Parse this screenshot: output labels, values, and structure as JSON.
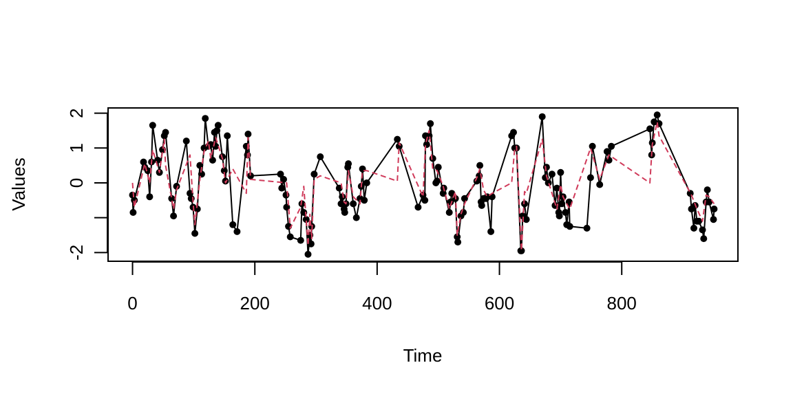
{
  "chart_data": {
    "type": "line",
    "title": "",
    "xlabel": "Time",
    "ylabel": "Values",
    "xlim": [
      -40,
      990
    ],
    "ylim": [
      -2.25,
      2.15
    ],
    "grid": false,
    "x_ticks": [
      {
        "value": 0,
        "label": "0"
      },
      {
        "value": 200,
        "label": "200"
      },
      {
        "value": 400,
        "label": "400"
      },
      {
        "value": 600,
        "label": "600"
      },
      {
        "value": 800,
        "label": "800"
      }
    ],
    "y_ticks": [
      {
        "value": -2,
        "label": "-2"
      },
      {
        "value": -1,
        "label": ""
      },
      {
        "value": 0,
        "label": "0"
      },
      {
        "value": 1,
        "label": "1"
      },
      {
        "value": 2,
        "label": "2"
      }
    ],
    "series": [
      {
        "style": "solid-with-points",
        "color": "#000000",
        "x": [
          0,
          1,
          3,
          18,
          20,
          25,
          28,
          31,
          33,
          41,
          44,
          49,
          52,
          54,
          64,
          67,
          72,
          88,
          94,
          96,
          99,
          102,
          106,
          110,
          113,
          117,
          119,
          124,
          128,
          131,
          134,
          136,
          138,
          140,
          147,
          150,
          152,
          155,
          164,
          171,
          186,
          188,
          189,
          193,
          242,
          244,
          247,
          251,
          252,
          255,
          258,
          275,
          277,
          280,
          284,
          287,
          290,
          292,
          293,
          297,
          307,
          338,
          341,
          343,
          346,
          347,
          349,
          352,
          353,
          361,
          366,
          372,
          374,
          376,
          379,
          383,
          433,
          436,
          467,
          475,
          478,
          479,
          481,
          485,
          487,
          491,
          496,
          498,
          500,
          508,
          509,
          518,
          520,
          522,
          528,
          531,
          532,
          537,
          541,
          543,
          563,
          567,
          568,
          570,
          571,
          574,
          578,
          580,
          586,
          588,
          620,
          623,
          625,
          628,
          635,
          636,
          638,
          641,
          644,
          670,
          675,
          677,
          680,
          686,
          691,
          694,
          697,
          698,
          700,
          702,
          704,
          708,
          710,
          714,
          715,
          743,
          749,
          752,
          764,
          776,
          779,
          783,
          846,
          849,
          850,
          853,
          858,
          861,
          912,
          914,
          918,
          920,
          923,
          926,
          932,
          934,
          938,
          940,
          943,
          950,
          951
        ],
        "y": [
          -0.35,
          -0.85,
          -0.5,
          0.6,
          0.45,
          0.35,
          -0.4,
          0.6,
          1.65,
          0.65,
          0.3,
          0.95,
          1.35,
          1.45,
          -0.45,
          -0.95,
          -0.1,
          1.2,
          -0.3,
          -0.45,
          -0.7,
          -1.45,
          -0.75,
          0.5,
          0.25,
          1.0,
          1.85,
          1.05,
          1.1,
          0.65,
          1.45,
          1.05,
          1.5,
          1.65,
          0.75,
          0.35,
          0.05,
          1.35,
          -1.2,
          -1.4,
          1.05,
          0.8,
          1.4,
          0.2,
          0.25,
          -0.15,
          0.1,
          -0.35,
          -0.7,
          -1.25,
          -1.55,
          -1.65,
          -0.6,
          -0.85,
          -1.05,
          -2.05,
          -1.5,
          -1.75,
          -1.25,
          0.25,
          0.75,
          -0.15,
          -0.6,
          -0.4,
          -0.75,
          -0.85,
          -0.6,
          0.45,
          0.55,
          -0.6,
          -1.0,
          -0.45,
          -0.1,
          0.4,
          -0.5,
          0.0,
          1.25,
          1.05,
          -0.7,
          -0.35,
          -0.5,
          1.35,
          1.1,
          1.35,
          1.7,
          0.7,
          0.0,
          0.05,
          0.45,
          -0.3,
          -0.15,
          -0.85,
          -0.55,
          -0.3,
          -0.45,
          -1.55,
          -1.7,
          -0.95,
          -0.85,
          -0.45,
          0.05,
          0.2,
          0.5,
          -0.55,
          -0.65,
          -0.45,
          -0.45,
          -0.4,
          -1.4,
          -0.4,
          1.35,
          1.45,
          1.0,
          1.0,
          -1.95,
          -1.95,
          -0.95,
          -0.6,
          -1.05,
          1.9,
          0.15,
          0.45,
          0.0,
          0.25,
          -0.65,
          -0.15,
          -0.85,
          -0.95,
          0.3,
          -0.6,
          -0.4,
          -0.85,
          -1.2,
          -0.55,
          -1.25,
          -1.3,
          0.15,
          1.05,
          -0.05,
          0.9,
          0.65,
          1.05,
          1.55,
          0.8,
          1.15,
          1.75,
          1.95,
          1.7,
          -0.3,
          -0.75,
          -1.3,
          -0.65,
          -1.1,
          -1.1,
          -1.35,
          -1.6,
          -0.55,
          -0.2,
          -0.55,
          -1.05,
          -0.75
        ]
      },
      {
        "style": "dashed",
        "color": "#d03a5a",
        "x": [
          0,
          3,
          20,
          28,
          33,
          44,
          52,
          54,
          67,
          72,
          94,
          99,
          102,
          110,
          117,
          124,
          128,
          136,
          147,
          152,
          164,
          186,
          189,
          193,
          252,
          258,
          275,
          280,
          287,
          290,
          293,
          297,
          307,
          341,
          346,
          349,
          353,
          361,
          372,
          376,
          383,
          433,
          436,
          475,
          479,
          485,
          491,
          498,
          508,
          518,
          528,
          531,
          537,
          543,
          563,
          568,
          574,
          580,
          588,
          620,
          625,
          628,
          636,
          641,
          644,
          670,
          677,
          686,
          694,
          700,
          704,
          710,
          715,
          749,
          764,
          779,
          846,
          850,
          858,
          861,
          914,
          923,
          932,
          938,
          943,
          951
        ],
        "y": [
          0.0,
          -0.7,
          0.55,
          0.0,
          0.95,
          0.3,
          1.25,
          0.5,
          -0.75,
          -0.2,
          0.8,
          -0.55,
          -1.2,
          0.1,
          0.9,
          1.2,
          0.7,
          1.3,
          0.7,
          0.0,
          0.4,
          -0.3,
          1.3,
          0.1,
          0.0,
          -1.3,
          -0.7,
          -0.1,
          -1.8,
          -0.9,
          -1.6,
          0.1,
          0.2,
          0.0,
          -0.55,
          -0.6,
          0.35,
          -0.4,
          -0.6,
          0.35,
          0.35,
          0.05,
          1.15,
          -0.4,
          1.1,
          1.5,
          0.4,
          0.35,
          -0.1,
          -0.75,
          -0.25,
          -1.5,
          -0.9,
          -0.6,
          0.15,
          0.4,
          -0.2,
          -0.4,
          -0.3,
          0.0,
          1.0,
          1.05,
          -1.95,
          -0.25,
          -0.3,
          1.25,
          0.2,
          -0.3,
          -0.75,
          -0.05,
          -0.4,
          -0.6,
          -0.75,
          1.0,
          0.1,
          0.8,
          0.0,
          1.1,
          1.75,
          1.35,
          -0.35,
          -0.75,
          -1.1,
          -0.35,
          -0.4,
          -0.6
        ]
      }
    ]
  }
}
